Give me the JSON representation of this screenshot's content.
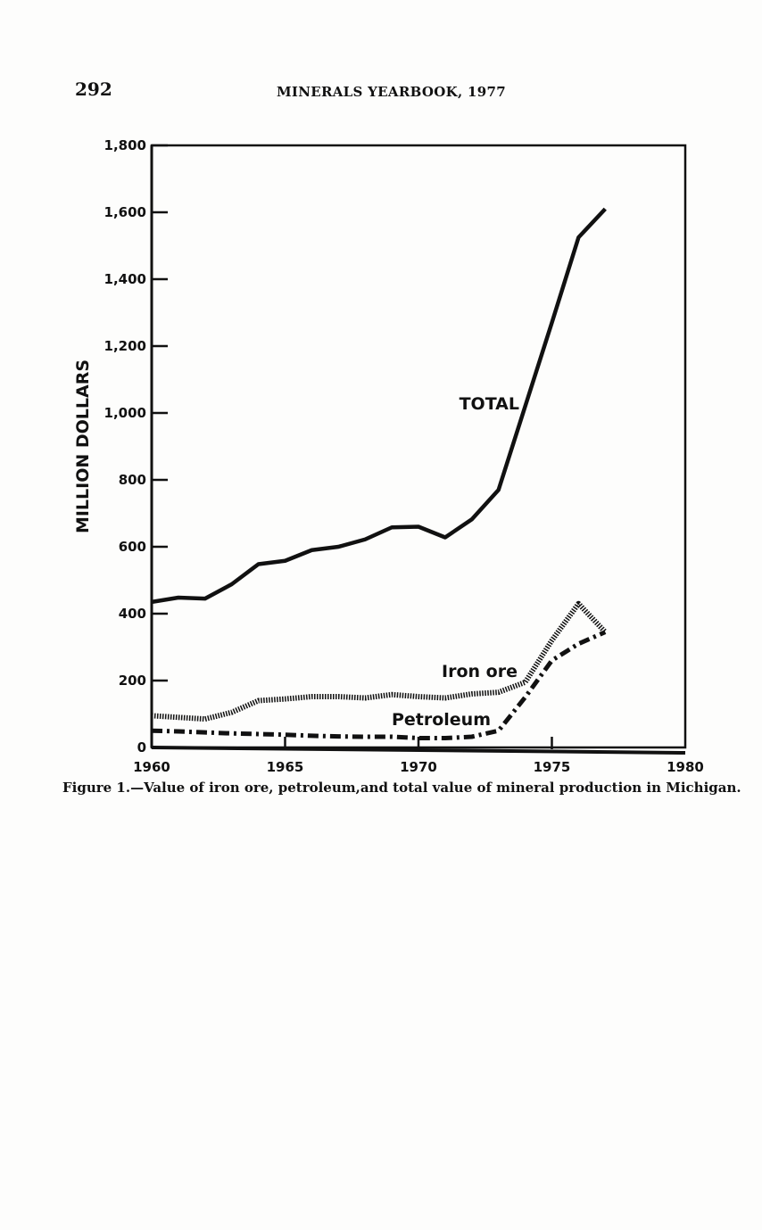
{
  "page_header": {
    "page_number": "292",
    "title": "MINERALS YEARBOOK, 1977"
  },
  "caption": "Figure 1.—Value of iron ore, petroleum,and total value of mineral production in Michigan.",
  "chart_data": {
    "type": "line",
    "title": "",
    "xlabel": "",
    "ylabel": "MILLION DOLLARS",
    "xlim": [
      1960,
      1980
    ],
    "ylim": [
      0,
      1800
    ],
    "x_ticks": [
      "1960",
      "1965",
      "1970",
      "1975",
      "1980"
    ],
    "y_ticks": [
      "0",
      "200",
      "400",
      "600",
      "800",
      "1,000",
      "1,200",
      "1,400",
      "1,600",
      "1,800"
    ],
    "grid": false,
    "x": [
      1960,
      1961,
      1962,
      1963,
      1964,
      1965,
      1966,
      1967,
      1968,
      1969,
      1970,
      1971,
      1972,
      1973,
      1974,
      1975,
      1976,
      1977
    ],
    "series": [
      {
        "name": "TOTAL",
        "style": "solid",
        "values": [
          435,
          448,
          445,
          488,
          548,
          558,
          590,
          600,
          622,
          658,
          660,
          628,
          682,
          770,
          1020,
          1270,
          1525,
          1610
        ]
      },
      {
        "name": "Iron ore",
        "style": "dotted",
        "values": [
          95,
          90,
          85,
          105,
          140,
          145,
          152,
          152,
          148,
          158,
          152,
          148,
          160,
          165,
          195,
          320,
          430,
          345
        ]
      },
      {
        "name": "Petroleum",
        "style": "dash-dot",
        "values": [
          50,
          48,
          45,
          42,
          40,
          38,
          35,
          33,
          32,
          32,
          28,
          28,
          32,
          50,
          150,
          260,
          310,
          345
        ]
      }
    ]
  }
}
